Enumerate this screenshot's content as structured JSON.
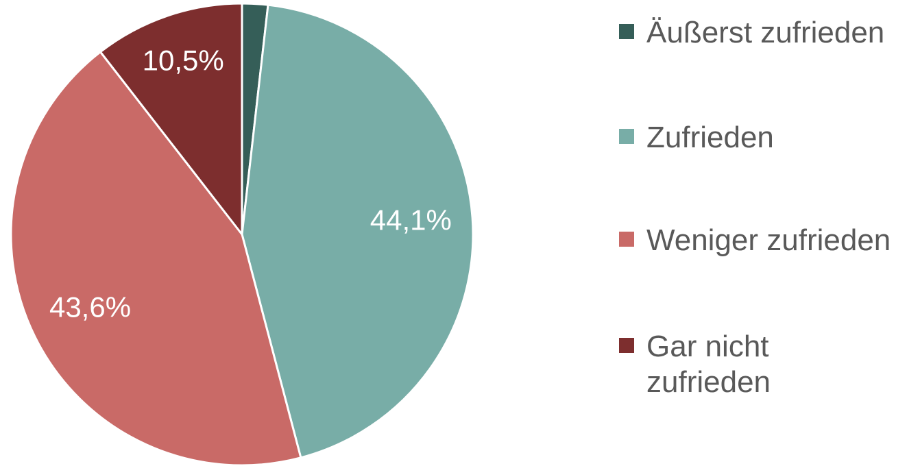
{
  "chart_data": {
    "type": "pie",
    "categories": [
      "Äußerst zufrieden",
      "Zufrieden",
      "Weniger zufrieden",
      "Gar nicht zufrieden"
    ],
    "values": [
      1.8,
      44.1,
      43.6,
      10.5
    ],
    "value_labels": [
      null,
      "44,1%",
      "43,6%",
      "10,5%"
    ],
    "colors": [
      "#355e58",
      "#78ada7",
      "#c96a67",
      "#7d2e2e"
    ],
    "legend": "right"
  }
}
